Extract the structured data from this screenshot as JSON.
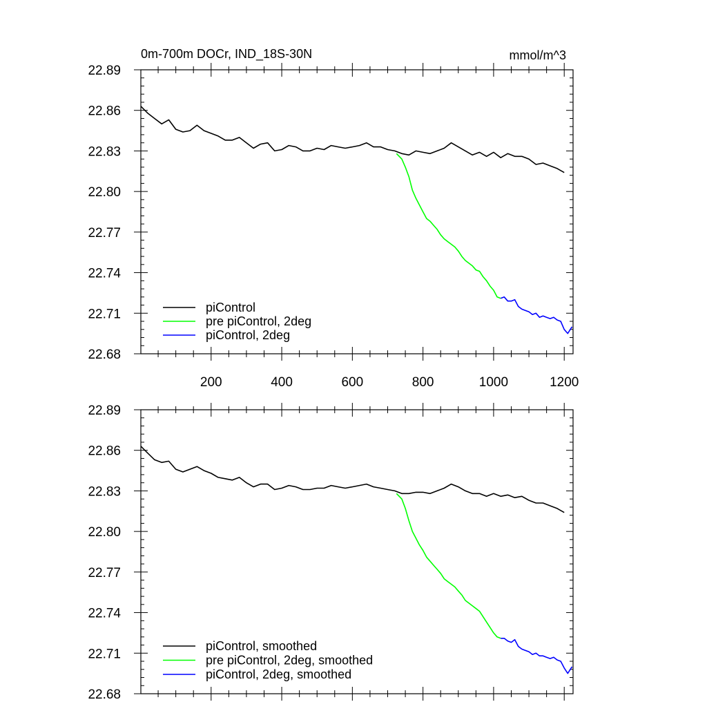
{
  "figure": {
    "title_left": "0m-700m DOCr, IND_18S-30N",
    "title_right": "mmol/m^3"
  },
  "colors": {
    "piControl": "#000000",
    "pre_piControl_2deg": "#00ff00",
    "piControl_2deg": "#0000ff"
  },
  "chart_data": [
    {
      "type": "line",
      "title": "0m-700m DOCr, IND_18S-30N",
      "units": "mmol/m^3",
      "xlim": [
        1,
        1225
      ],
      "ylim": [
        22.68,
        22.89
      ],
      "xticks": [
        200,
        400,
        600,
        800,
        1000,
        1200
      ],
      "xtick_labels": [
        "200",
        "400",
        "600",
        "800",
        "1000",
        "1200"
      ],
      "yticks": [
        22.68,
        22.71,
        22.74,
        22.77,
        22.8,
        22.83,
        22.86,
        22.89
      ],
      "ytick_labels": [
        "22.68",
        "22.71",
        "22.74",
        "22.77",
        "22.80",
        "22.83",
        "22.86",
        "22.89"
      ],
      "legend_position": "bottom-left",
      "grid": false,
      "series": [
        {
          "name": "piControl",
          "color": "#000000",
          "x": [
            1,
            20,
            40,
            60,
            80,
            100,
            120,
            140,
            160,
            180,
            200,
            220,
            240,
            260,
            280,
            300,
            320,
            340,
            360,
            380,
            400,
            420,
            440,
            460,
            480,
            500,
            520,
            540,
            560,
            580,
            600,
            620,
            640,
            660,
            680,
            700,
            720,
            740,
            760,
            780,
            800,
            820,
            840,
            860,
            880,
            900,
            920,
            940,
            960,
            980,
            1000,
            1020,
            1040,
            1060,
            1080,
            1100,
            1120,
            1140,
            1160,
            1180,
            1200
          ],
          "y": [
            22.863,
            22.858,
            22.854,
            22.85,
            22.853,
            22.846,
            22.844,
            22.845,
            22.849,
            22.845,
            22.843,
            22.841,
            22.838,
            22.838,
            22.84,
            22.836,
            22.832,
            22.835,
            22.836,
            22.83,
            22.831,
            22.834,
            22.833,
            22.83,
            22.83,
            22.832,
            22.831,
            22.834,
            22.833,
            22.832,
            22.833,
            22.834,
            22.836,
            22.833,
            22.833,
            22.831,
            22.83,
            22.828,
            22.827,
            22.83,
            22.829,
            22.828,
            22.83,
            22.832,
            22.836,
            22.833,
            22.83,
            22.827,
            22.829,
            22.826,
            22.829,
            22.825,
            22.828,
            22.826,
            22.826,
            22.824,
            22.82,
            22.821,
            22.819,
            22.817,
            22.814
          ]
        },
        {
          "name": "pre piControl, 2deg",
          "color": "#00ff00",
          "x": [
            725,
            740,
            750,
            760,
            770,
            780,
            790,
            800,
            810,
            820,
            830,
            840,
            850,
            860,
            870,
            880,
            890,
            900,
            910,
            920,
            930,
            940,
            950,
            960,
            970,
            980,
            990,
            1000,
            1010,
            1020
          ],
          "y": [
            22.828,
            22.824,
            22.818,
            22.811,
            22.801,
            22.795,
            22.79,
            22.785,
            22.78,
            22.778,
            22.775,
            22.772,
            22.768,
            22.765,
            22.763,
            22.761,
            22.759,
            22.756,
            22.752,
            22.749,
            22.747,
            22.745,
            22.742,
            22.741,
            22.737,
            22.734,
            22.73,
            22.727,
            22.722,
            22.721
          ]
        },
        {
          "name": "piControl, 2deg",
          "color": "#0000ff",
          "x": [
            1020,
            1030,
            1040,
            1050,
            1060,
            1070,
            1080,
            1090,
            1100,
            1110,
            1120,
            1130,
            1140,
            1150,
            1160,
            1170,
            1180,
            1190,
            1200,
            1210,
            1222
          ],
          "y": [
            22.721,
            22.722,
            22.719,
            22.719,
            22.72,
            22.715,
            22.713,
            22.712,
            22.711,
            22.709,
            22.71,
            22.707,
            22.708,
            22.707,
            22.706,
            22.707,
            22.705,
            22.704,
            22.698,
            22.695,
            22.7
          ]
        }
      ]
    },
    {
      "type": "line",
      "title": "",
      "units": "",
      "xlim": [
        1,
        1225
      ],
      "ylim": [
        22.68,
        22.89
      ],
      "yticks": [
        22.68,
        22.71,
        22.74,
        22.77,
        22.8,
        22.83,
        22.86,
        22.89
      ],
      "ytick_labels": [
        "22.68",
        "22.71",
        "22.74",
        "22.77",
        "22.80",
        "22.83",
        "22.86",
        "22.89"
      ],
      "legend_position": "bottom-left",
      "grid": false,
      "series": [
        {
          "name": "piControl, smoothed",
          "color": "#000000",
          "x": [
            1,
            20,
            40,
            60,
            80,
            100,
            120,
            140,
            160,
            180,
            200,
            220,
            240,
            260,
            280,
            300,
            320,
            340,
            360,
            380,
            400,
            420,
            440,
            460,
            480,
            500,
            520,
            540,
            560,
            580,
            600,
            620,
            640,
            660,
            680,
            700,
            720,
            740,
            760,
            780,
            800,
            820,
            840,
            860,
            880,
            900,
            920,
            940,
            960,
            980,
            1000,
            1020,
            1040,
            1060,
            1080,
            1100,
            1120,
            1140,
            1160,
            1180,
            1200
          ],
          "y": [
            22.863,
            22.858,
            22.853,
            22.851,
            22.852,
            22.846,
            22.844,
            22.846,
            22.848,
            22.845,
            22.843,
            22.84,
            22.839,
            22.838,
            22.84,
            22.836,
            22.833,
            22.835,
            22.835,
            22.831,
            22.832,
            22.834,
            22.833,
            22.831,
            22.831,
            22.832,
            22.832,
            22.834,
            22.833,
            22.832,
            22.833,
            22.834,
            22.835,
            22.833,
            22.832,
            22.831,
            22.83,
            22.828,
            22.828,
            22.829,
            22.829,
            22.828,
            22.83,
            22.832,
            22.835,
            22.833,
            22.83,
            22.828,
            22.828,
            22.826,
            22.828,
            22.826,
            22.827,
            22.825,
            22.826,
            22.823,
            22.821,
            22.821,
            22.819,
            22.817,
            22.814
          ]
        },
        {
          "name": "pre piControl, 2deg, smoothed",
          "color": "#00ff00",
          "x": [
            725,
            740,
            750,
            760,
            770,
            780,
            790,
            800,
            810,
            820,
            830,
            840,
            850,
            860,
            870,
            880,
            890,
            900,
            910,
            920,
            930,
            940,
            950,
            960,
            970,
            980,
            990,
            1000,
            1010,
            1020
          ],
          "y": [
            22.828,
            22.824,
            22.817,
            22.808,
            22.8,
            22.795,
            22.79,
            22.786,
            22.781,
            22.778,
            22.775,
            22.772,
            22.769,
            22.765,
            22.763,
            22.761,
            22.759,
            22.756,
            22.753,
            22.749,
            22.747,
            22.745,
            22.743,
            22.741,
            22.737,
            22.733,
            22.729,
            22.725,
            22.722,
            22.721
          ]
        },
        {
          "name": "piControl, 2deg, smoothed",
          "color": "#0000ff",
          "x": [
            1020,
            1030,
            1040,
            1050,
            1060,
            1070,
            1080,
            1090,
            1100,
            1110,
            1120,
            1130,
            1140,
            1150,
            1160,
            1170,
            1180,
            1190,
            1200,
            1210,
            1222
          ],
          "y": [
            22.721,
            22.721,
            22.719,
            22.718,
            22.72,
            22.715,
            22.713,
            22.712,
            22.711,
            22.709,
            22.71,
            22.708,
            22.708,
            22.707,
            22.706,
            22.707,
            22.705,
            22.704,
            22.699,
            22.695,
            22.7
          ]
        }
      ]
    }
  ]
}
